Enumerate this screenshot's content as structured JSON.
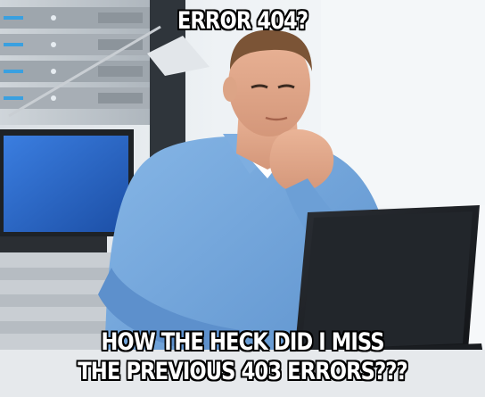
{
  "meme": {
    "top_text": "ERROR 404?",
    "bottom_text_line1": "HOW THE HECK DID I MISS",
    "bottom_text_line2": "THE PREVIOUS 403 ERRORS???"
  },
  "colors": {
    "shirt": "#6a9fd8",
    "laptop": "#1c1f24",
    "monitor_screen": "#2a69c9",
    "server_rack": "#3b4249",
    "skin": "#e2a88a",
    "background": "#eef1f4"
  },
  "icons": {
    "scene": "man-at-laptop-photo"
  }
}
